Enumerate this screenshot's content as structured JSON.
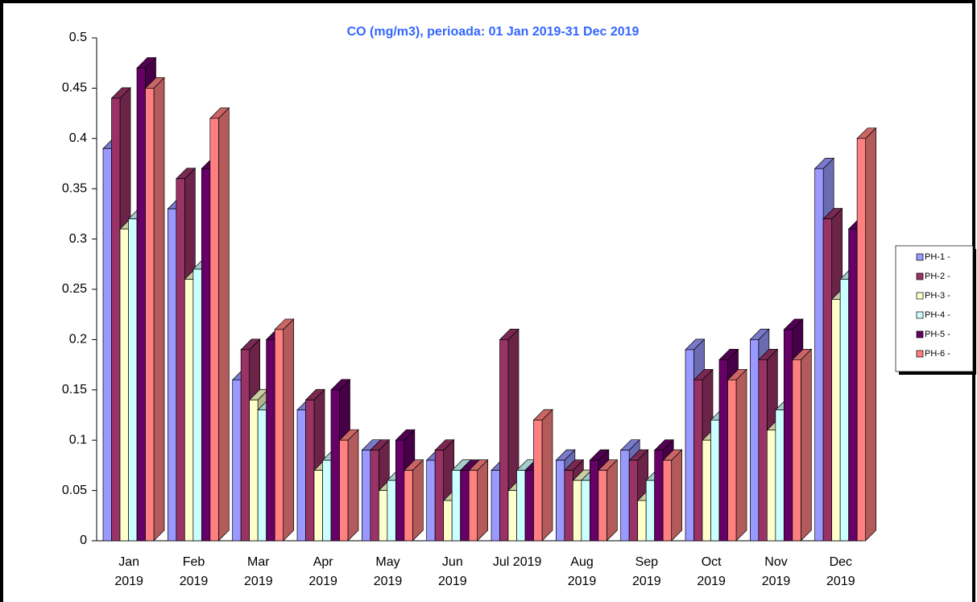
{
  "chart_data": {
    "type": "bar3d",
    "title": "CO (mg/m3), perioada: 01 Jan 2019-31 Dec 2019",
    "categories": [
      "Jan\n2019",
      "Feb\n2019",
      "Mar\n2019",
      "Apr\n2019",
      "May\n2019",
      "Jun\n2019",
      "Jul 2019",
      "Aug\n2019",
      "Sep\n2019",
      "Oct\n2019",
      "Nov\n2019",
      "Dec\n2019"
    ],
    "series": [
      {
        "name": "PH-1 -",
        "color": "#9999ff",
        "values": [
          0.39,
          0.33,
          0.16,
          0.13,
          0.09,
          0.08,
          0.07,
          0.08,
          0.09,
          0.19,
          0.2,
          0.37
        ]
      },
      {
        "name": "PH-2 -",
        "color": "#993366",
        "values": [
          0.44,
          0.36,
          0.19,
          0.14,
          0.09,
          0.09,
          0.2,
          0.07,
          0.08,
          0.16,
          0.18,
          0.32
        ]
      },
      {
        "name": "PH-3 -",
        "color": "#ffffcc",
        "values": [
          0.31,
          0.26,
          0.14,
          0.07,
          0.05,
          0.04,
          0.05,
          0.06,
          0.04,
          0.1,
          0.11,
          0.24
        ]
      },
      {
        "name": "PH-4 -",
        "color": "#ccffff",
        "values": [
          0.32,
          0.27,
          0.13,
          0.08,
          0.06,
          0.07,
          0.07,
          0.06,
          0.06,
          0.12,
          0.13,
          0.26
        ]
      },
      {
        "name": "PH-5 -",
        "color": "#660066",
        "values": [
          0.47,
          0.37,
          0.2,
          0.15,
          0.1,
          0.07,
          0.07,
          0.08,
          0.09,
          0.18,
          0.21,
          0.31
        ]
      },
      {
        "name": "PH-6 -",
        "color": "#ff8080",
        "values": [
          0.45,
          0.42,
          0.21,
          0.1,
          0.07,
          0.07,
          0.12,
          0.07,
          0.08,
          0.16,
          0.18,
          0.4
        ]
      }
    ],
    "ylim": [
      0,
      0.5
    ],
    "yticks": [
      0,
      0.05,
      0.1,
      0.15,
      0.2,
      0.25,
      0.3,
      0.35,
      0.4,
      0.45,
      0.5
    ],
    "legend": "right"
  }
}
